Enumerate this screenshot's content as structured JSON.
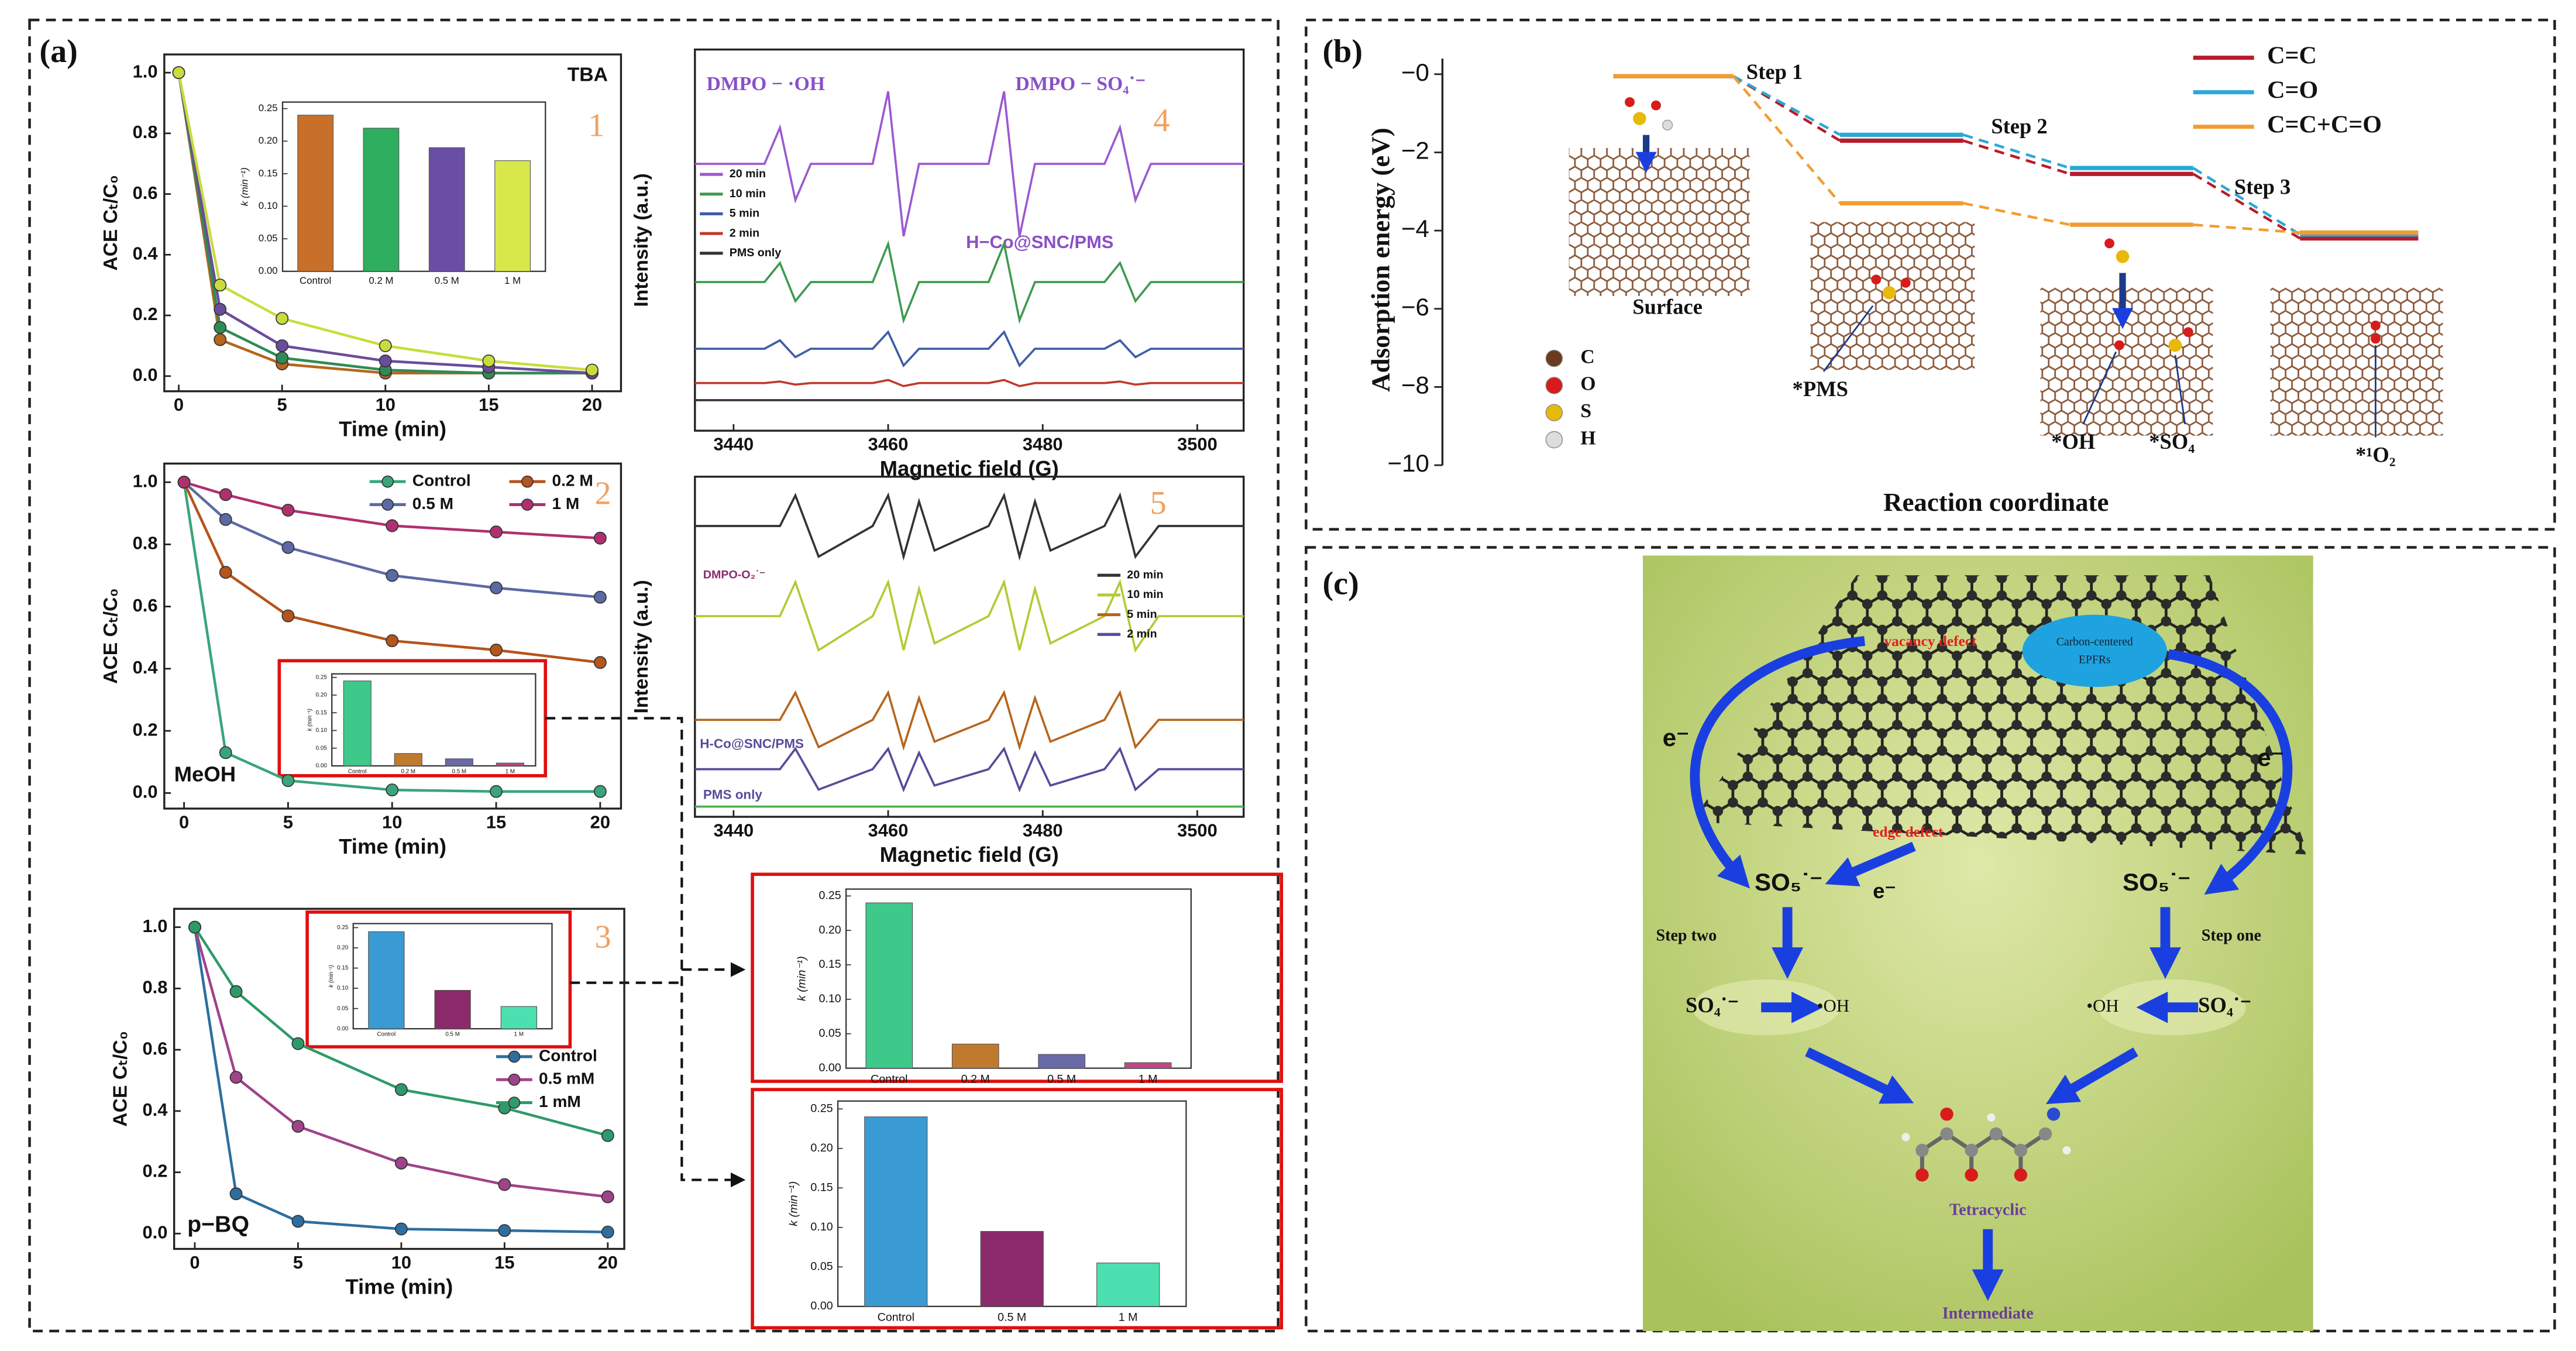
{
  "panel_labels": [
    "(a)",
    "(b)",
    "(c)"
  ],
  "chart_data": [
    {
      "type": "line",
      "label": "TBA",
      "panel_number": "1",
      "x": [
        0,
        2,
        5,
        10,
        15,
        20
      ],
      "xlim": [
        -0.7,
        21.4
      ],
      "xticks": [
        0,
        5,
        10,
        15,
        20
      ],
      "ylim": [
        -0.05,
        1.06
      ],
      "yticks": [
        {
          "value": 0,
          "label": "0.0"
        },
        0.2,
        0.4,
        0.6,
        0.8,
        {
          "value": 1,
          "label": "1.0"
        }
      ],
      "xlabel": "Time (min)",
      "ylabel": "ACE Cₜ/C₀",
      "markers": true,
      "series": [
        {
          "color": "#b5651d",
          "values": [
            1,
            0.12,
            0.04,
            0.01,
            0.01,
            0.01
          ]
        },
        {
          "color": "#2e8b57",
          "values": [
            1,
            0.16,
            0.06,
            0.02,
            0.01,
            0.01
          ]
        },
        {
          "color": "#6a4c9c",
          "values": [
            1,
            0.22,
            0.1,
            0.05,
            0.03,
            0.01
          ]
        },
        {
          "color": "#c9dc3c",
          "values": [
            1,
            0.3,
            0.19,
            0.1,
            0.05,
            0.02
          ]
        }
      ]
    },
    {
      "type": "bar",
      "categories": [
        "Control",
        "0.2 M",
        "0.5 M",
        "1 M"
      ],
      "values": [
        0.24,
        0.22,
        0.19,
        0.17
      ],
      "colors": [
        "#c8702a",
        "#2eae5e",
        "#6a4ea6",
        "#d8e84a"
      ],
      "ylim": [
        0,
        0.26
      ],
      "yticks": [
        {
          "value": 0,
          "label": "0.00"
        },
        0.05,
        {
          "value": 0.1,
          "label": "0.10"
        },
        0.15,
        {
          "value": 0.2,
          "label": "0.20"
        },
        0.25
      ],
      "ylabel": "k (min⁻¹)"
    },
    {
      "type": "line",
      "label": "MeOH",
      "panel_number": "2",
      "x": [
        0,
        2,
        5,
        10,
        15,
        20
      ],
      "xlim": [
        -0.95,
        21
      ],
      "xticks": [
        0,
        5,
        10,
        15,
        20
      ],
      "ylim": [
        -0.05,
        1.06
      ],
      "yticks": [
        {
          "value": 0,
          "label": "0.0"
        },
        0.2,
        0.4,
        0.6,
        0.8,
        {
          "value": 1,
          "label": "1.0"
        }
      ],
      "xlabel": "Time (min)",
      "ylabel": "ACE Cₜ/C₀",
      "markers": true,
      "legend": "top",
      "series": [
        {
          "name": "Control",
          "color": "#3aa57a",
          "values": [
            1,
            0.13,
            0.04,
            0.01,
            0.005,
            0.005
          ]
        },
        {
          "name": "0.2 M",
          "color": "#b5541b",
          "values": [
            1,
            0.71,
            0.57,
            0.49,
            0.46,
            0.42
          ]
        },
        {
          "name": "0.5 M",
          "color": "#5b6aa5",
          "values": [
            1,
            0.88,
            0.79,
            0.7,
            0.66,
            0.63
          ]
        },
        {
          "name": "1 M",
          "color": "#b0306f",
          "values": [
            1,
            0.96,
            0.91,
            0.86,
            0.84,
            0.82
          ]
        }
      ]
    },
    {
      "type": "bar",
      "categories": [
        "Control",
        "0.2 M",
        "0.5 M",
        "1 M"
      ],
      "values": [
        0.24,
        0.035,
        0.02,
        0.008
      ],
      "colors": [
        "#3ec98a",
        "#c07a30",
        "#6a6aa8",
        "#c04888"
      ],
      "ylim": [
        0,
        0.26
      ],
      "yticks": [
        {
          "value": 0,
          "label": "0.00"
        },
        0.05,
        {
          "value": 0.1,
          "label": "0.10"
        },
        0.15,
        {
          "value": 0.2,
          "label": "0.20"
        },
        0.25
      ],
      "ylabel": "k (min⁻¹)"
    },
    {
      "type": "line",
      "label": "p−BQ",
      "panel_number": "3",
      "x": [
        0,
        2,
        5,
        10,
        15,
        20
      ],
      "xlim": [
        -1,
        20.8
      ],
      "xticks": [
        0,
        5,
        10,
        15,
        20
      ],
      "ylim": [
        -0.05,
        1.06
      ],
      "yticks": [
        {
          "value": 0,
          "label": "0.0"
        },
        0.2,
        0.4,
        0.6,
        0.8,
        {
          "value": 1,
          "label": "1.0"
        }
      ],
      "xlabel": "Time (min)",
      "ylabel": "ACE Cₜ/C₀",
      "markers": true,
      "legend": "lower right",
      "series": [
        {
          "name": "Control",
          "color": "#2e6e9e",
          "values": [
            1,
            0.13,
            0.04,
            0.015,
            0.01,
            0.005
          ]
        },
        {
          "name": "0.5 mM",
          "color": "#a0438a",
          "values": [
            1,
            0.51,
            0.35,
            0.23,
            0.16,
            0.12
          ]
        },
        {
          "name": "1 mM",
          "color": "#2e9a6a",
          "values": [
            1,
            0.79,
            0.62,
            0.47,
            0.41,
            0.32
          ]
        }
      ]
    },
    {
      "type": "bar",
      "categories": [
        "Control",
        "0.5 M",
        "1 M"
      ],
      "values": [
        0.24,
        0.095,
        0.055
      ],
      "colors": [
        "#3a9ad4",
        "#8a2a6a",
        "#4ce0b0"
      ],
      "ylim": [
        0,
        0.26
      ],
      "yticks": [
        {
          "value": 0,
          "label": "0.00"
        },
        0.05,
        {
          "value": 0.1,
          "label": "0.10"
        },
        0.15,
        {
          "value": 0.2,
          "label": "0.20"
        },
        0.25
      ],
      "ylabel": "k (min⁻¹)"
    },
    {
      "type": "line",
      "panel_number": "4",
      "annotations": [
        "DMPO − ·OH",
        "DMPO − SO₄˙⁻",
        "H−Co@SNC/PMS"
      ],
      "x": [
        3435,
        3444,
        3446,
        3448,
        3450,
        3458,
        3460,
        3462,
        3464,
        3473,
        3475,
        3477,
        3479,
        3488,
        3490,
        3492,
        3494,
        3506
      ],
      "xlim": [
        3435,
        3506
      ],
      "xticks": [
        3440,
        3460,
        3480,
        3500
      ],
      "ylim": [
        0,
        10
      ],
      "xlabel": "Magnetic field (G)",
      "ylabel": "Intensity (a.u.)",
      "markers": false,
      "legend": "left",
      "series": [
        {
          "name": "20 min",
          "color": "#9b59d0",
          "values": [
            7,
            7,
            7.95,
            6.05,
            7,
            7,
            8.9,
            5.1,
            7,
            7,
            8.9,
            5.1,
            7,
            7,
            7.95,
            6.05,
            7,
            7
          ]
        },
        {
          "name": "10 min",
          "color": "#3f9a4f",
          "values": [
            3.9,
            3.9,
            4.4,
            3.4,
            3.9,
            3.9,
            4.9,
            2.9,
            3.9,
            3.9,
            4.9,
            2.9,
            3.9,
            3.9,
            4.4,
            3.4,
            3.9,
            3.9
          ]
        },
        {
          "name": "5 min",
          "color": "#3f5ea8",
          "values": [
            2.15,
            2.15,
            2.37,
            1.93,
            2.15,
            2.15,
            2.59,
            1.71,
            2.15,
            2.15,
            2.59,
            1.71,
            2.15,
            2.15,
            2.37,
            1.93,
            2.15,
            2.15
          ]
        },
        {
          "name": "2 min",
          "color": "#c0392b",
          "values": [
            1.25,
            1.25,
            1.29,
            1.21,
            1.25,
            1.25,
            1.33,
            1.17,
            1.25,
            1.25,
            1.33,
            1.17,
            1.25,
            1.25,
            1.29,
            1.21,
            1.25,
            1.25
          ]
        },
        {
          "name": "PMS only",
          "color": "#333333",
          "values": [
            0.8,
            0.8,
            0.8,
            0.8,
            0.8,
            0.8,
            0.8,
            0.8,
            0.8,
            0.8,
            0.8,
            0.8,
            0.8,
            0.8,
            0.8,
            0.8,
            0.8,
            0.8
          ]
        }
      ]
    },
    {
      "type": "line",
      "panel_number": "5",
      "annotations": [
        "DMPO-O₂˙⁻",
        "H-Co@SNC/PMS",
        "PMS only"
      ],
      "x": [
        3435,
        3446,
        3448,
        3451,
        3458,
        3460,
        3462,
        3464,
        3466,
        3473,
        3475,
        3477,
        3479,
        3481,
        3488,
        3490,
        3492,
        3495,
        3506
      ],
      "xlim": [
        3435,
        3506
      ],
      "xticks": [
        3440,
        3460,
        3480,
        3500
      ],
      "ylim": [
        0,
        10
      ],
      "xlabel": "Magnetic field (G)",
      "ylabel": "Intensity (a.u.)",
      "markers": false,
      "legend": "right",
      "series": [
        {
          "name": "20 min",
          "color": "#333333",
          "values": [
            8.55,
            8.55,
            9.45,
            7.65,
            8.55,
            9.45,
            7.65,
            9.27,
            7.83,
            8.55,
            9.45,
            7.65,
            9.27,
            7.83,
            8.55,
            9.45,
            7.65,
            8.55,
            8.55
          ]
        },
        {
          "name": "10 min",
          "color": "#b5c934",
          "values": [
            5.9,
            5.9,
            6.9,
            4.9,
            5.9,
            6.9,
            4.9,
            6.7,
            5.1,
            5.9,
            6.9,
            4.9,
            6.7,
            5.1,
            5.9,
            6.9,
            4.9,
            5.9,
            5.9
          ]
        },
        {
          "name": "5 min",
          "color": "#b5651d",
          "values": [
            2.85,
            2.85,
            3.65,
            2.05,
            2.85,
            3.65,
            2.05,
            3.49,
            2.21,
            2.85,
            3.65,
            2.05,
            3.49,
            2.21,
            2.85,
            3.65,
            2.05,
            2.85,
            2.85
          ]
        },
        {
          "name": "2 min",
          "color": "#5b4a9a",
          "values": [
            1.4,
            1.4,
            2,
            0.8,
            1.4,
            2,
            0.8,
            1.88,
            0.92,
            1.4,
            2,
            0.8,
            1.88,
            0.92,
            1.4,
            2,
            0.8,
            1.4,
            1.4
          ]
        },
        {
          "color": "#4caf50",
          "values": [
            0.3,
            0.3,
            0.3,
            0.3,
            0.3,
            0.3,
            0.3,
            0.3,
            0.3,
            0.3,
            0.3,
            0.3,
            0.3,
            0.3,
            0.3,
            0.3,
            0.3,
            0.3,
            0.3
          ]
        }
      ]
    },
    {
      "type": "level",
      "ylabel": "Adsorption energy (eV)",
      "xlabel": "Reaction coordinate",
      "ylim": [
        -10,
        0.4
      ],
      "yticks": [
        {
          "value": 0,
          "label": "−0"
        },
        {
          "value": -2,
          "label": "−2"
        },
        {
          "value": -4,
          "label": "−4"
        },
        {
          "value": -6,
          "label": "−6"
        },
        {
          "value": -8,
          "label": "−8"
        },
        {
          "value": -10,
          "label": "−10"
        }
      ],
      "steps": [
        "Step 1",
        "Step 2",
        "Step 3"
      ],
      "states": [
        "Surface",
        "*PMS",
        "*OH",
        "*SO₄",
        "*¹O₂"
      ],
      "legend": "upper right",
      "atoms": [
        {
          "label": "C",
          "color": "#6b3b1f"
        },
        {
          "label": "O",
          "color": "#d81b1b"
        },
        {
          "label": "S",
          "color": "#e8b90a"
        },
        {
          "label": "H",
          "color": "#dddddd"
        }
      ],
      "series": [
        {
          "name": "C=C",
          "color": "#b71c2c",
          "values": [
            -0.05,
            -1.7,
            -2.55,
            -4.2
          ]
        },
        {
          "name": "C=O",
          "color": "#29a9d6",
          "values": [
            -0.05,
            -1.55,
            -2.4,
            -4.1
          ]
        },
        {
          "name": "C=C+C=O",
          "color": "#f39c33",
          "values": [
            -0.05,
            -3.3,
            -3.85,
            -4.05
          ]
        }
      ]
    }
  ],
  "scheme": {
    "vacancy": "vacancy defect",
    "epfrs": [
      "Carbon-centered",
      "EPFRs"
    ],
    "electron": "e⁻",
    "edge": "edge defect",
    "so5": "SO₅˙⁻",
    "step_two": "Step two",
    "step_one": "Step one",
    "so4": "SO₄˙⁻",
    "oh": "•OH",
    "product": "Tetracyclic",
    "intermediate": "Intermediate"
  }
}
